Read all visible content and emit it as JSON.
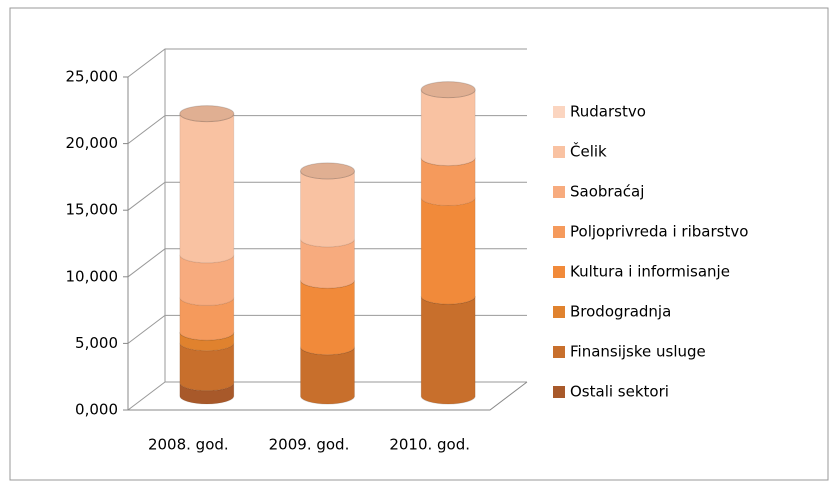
{
  "chart_data": {
    "type": "bar3d_stacked",
    "categories": [
      "2008. god.",
      "2009. god.",
      "2010. god."
    ],
    "series": [
      {
        "name": "Ostali sektori",
        "color": "#a8592a",
        "values": [
          1000,
          0,
          0
        ]
      },
      {
        "name": "Finansijske usluge",
        "color": "#c86f2c",
        "values": [
          3000,
          3700,
          7500
        ]
      },
      {
        "name": "Brodogradnja",
        "color": "#e0822e",
        "values": [
          800,
          0,
          0
        ]
      },
      {
        "name": "Kultura i informisanje",
        "color": "#f18a3a",
        "values": [
          0,
          5000,
          7400
        ]
      },
      {
        "name": "Poljoprivreda i ribarstvo",
        "color": "#f59a5c",
        "values": [
          2600,
          0,
          3000
        ]
      },
      {
        "name": "Saobraćaj",
        "color": "#f7ab7e",
        "values": [
          3200,
          3100,
          0
        ]
      },
      {
        "name": "Čelik",
        "color": "#f9c2a2",
        "values": [
          10600,
          5100,
          5100
        ]
      },
      {
        "name": "Rudarstvo",
        "color": "#fbd5c0",
        "values": [
          0,
          0,
          0
        ]
      }
    ],
    "ylim": [
      0,
      25000
    ],
    "yticks": [
      {
        "value": 0,
        "label": "0,000"
      },
      {
        "value": 5000,
        "label": "5,000"
      },
      {
        "value": 10000,
        "label": "10,000"
      },
      {
        "value": 15000,
        "label": "15,000"
      },
      {
        "value": 20000,
        "label": "20,000"
      },
      {
        "value": 25000,
        "label": "25,000"
      }
    ],
    "grid": true,
    "legend": "right"
  }
}
